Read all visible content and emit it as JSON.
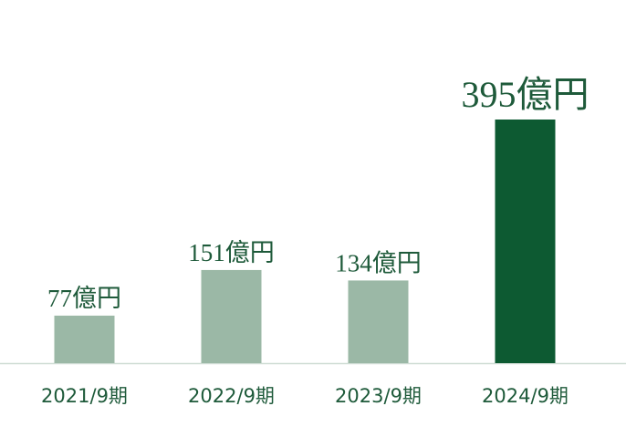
{
  "chart_data": {
    "type": "bar",
    "categories": [
      "2021/9期",
      "2022/9期",
      "2023/9期",
      "2024/9期"
    ],
    "values": [
      77,
      151,
      134,
      395
    ],
    "value_labels": [
      "77億円",
      "151億円",
      "134億円",
      "395億円"
    ],
    "colors": [
      "#9bb8a6",
      "#9bb8a6",
      "#9bb8a6",
      "#0d5a32"
    ]
  }
}
